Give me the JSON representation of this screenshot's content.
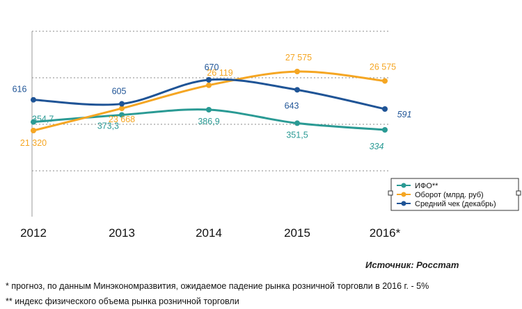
{
  "chart_data": {
    "type": "line",
    "categories": [
      "2012",
      "2013",
      "2014",
      "2015",
      "2016*"
    ],
    "series": [
      {
        "name": "ИФО**",
        "color": "#2a9a94",
        "values": [
          354.7,
          373.3,
          386.9,
          351.5,
          334
        ],
        "labels": [
          "354,7",
          "373,3",
          "386,9",
          "351,5",
          "334"
        ]
      },
      {
        "name": "Оборот (млрд. руб)",
        "color": "#f5a623",
        "values": [
          21320,
          23668,
          26119,
          27575,
          26575
        ],
        "labels": [
          "21 320",
          "23 668",
          "26 119",
          "27 575",
          "26 575"
        ]
      },
      {
        "name": "Средний чек (декабрь)",
        "color": "#1f5496",
        "values": [
          616,
          605,
          670,
          643,
          591
        ],
        "labels": [
          "616",
          "605",
          "670",
          "643",
          "591"
        ]
      }
    ],
    "legend_position": "right",
    "grid": "dotted horizontal"
  },
  "source": "Источник: Росстат",
  "notes": [
    "* прогноз, по данным Минэкономразвития, ожидаемое падение рынка розничной торговли в 2016 г. - 5%",
    "** индекс физического объема рынка розничной торговли"
  ]
}
